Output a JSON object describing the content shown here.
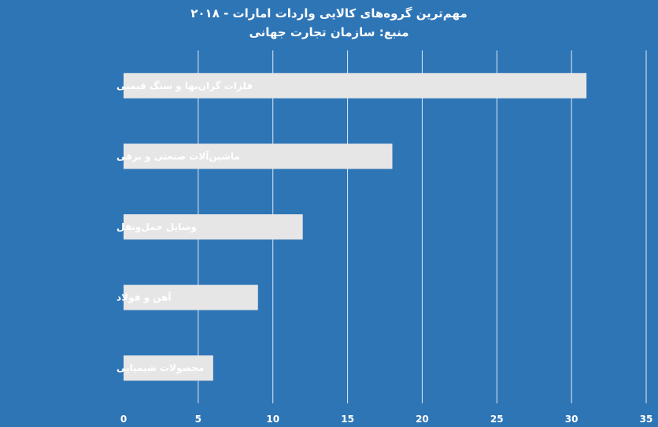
{
  "chart_data": {
    "type": "bar",
    "orientation": "horizontal",
    "title": "مهم‌ترین گروه‌های کالایی واردات امارات - ۲۰۱۸",
    "subtitle": "منبع: سازمان تجارت جهانی",
    "categories": [
      "فلزات گران‌بها و سنگ قیمتی",
      "ماشین‌آلات صنعتی و برقی",
      "وسایل حمل‌ونقل",
      "آهن و فولاد",
      "محصولات شیمیایی"
    ],
    "values": [
      31,
      18,
      12,
      9,
      6
    ],
    "xlim": [
      0,
      35
    ],
    "xticks": [
      "0",
      "5",
      "10",
      "15",
      "20",
      "25",
      "30",
      "35"
    ],
    "xlabel": "",
    "ylabel": "",
    "grid": "vertical",
    "legend": "none",
    "colors": {
      "background": "#2e75b6",
      "bar": "#e7e6e6",
      "text": "#ffffff",
      "grid": "#ffffff"
    }
  }
}
